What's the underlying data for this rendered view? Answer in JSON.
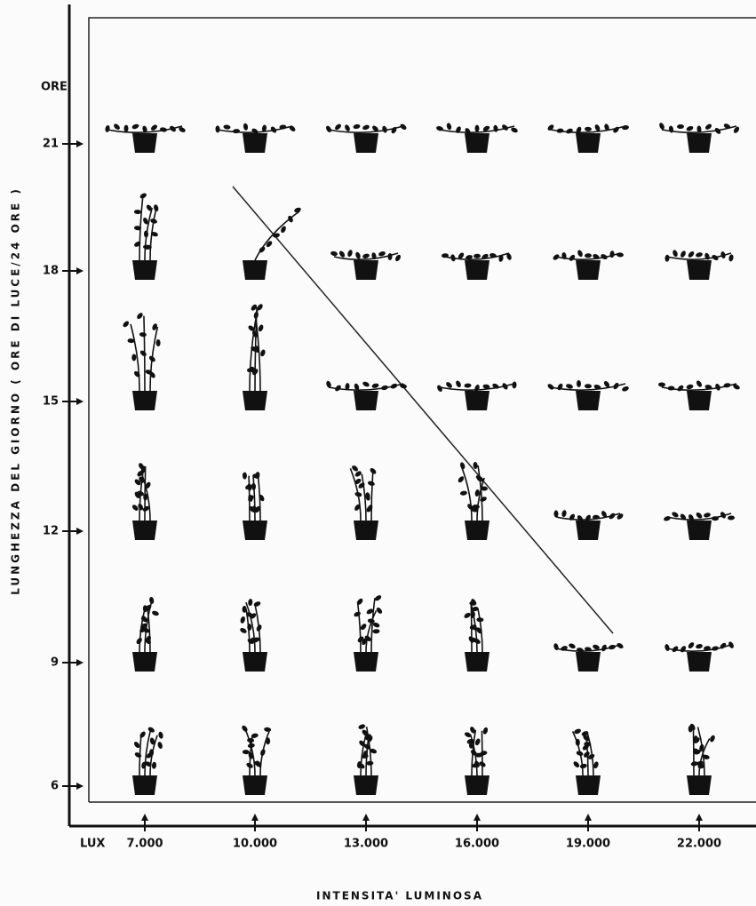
{
  "figure": {
    "y_unit": "ORE",
    "y_title": "LUNGHEZZA DEL GIORNO ( ORE DI LUCE/24 ORE )",
    "y_ticks": [
      "21",
      "18",
      "15",
      "12",
      "9",
      "6"
    ],
    "x_unit": "LUX",
    "x_ticks": [
      "7.000",
      "10.000",
      "13.000",
      "16.000",
      "19.000",
      "22.000"
    ],
    "x_title": "INTENSITA' LUMINOSA"
  }
}
